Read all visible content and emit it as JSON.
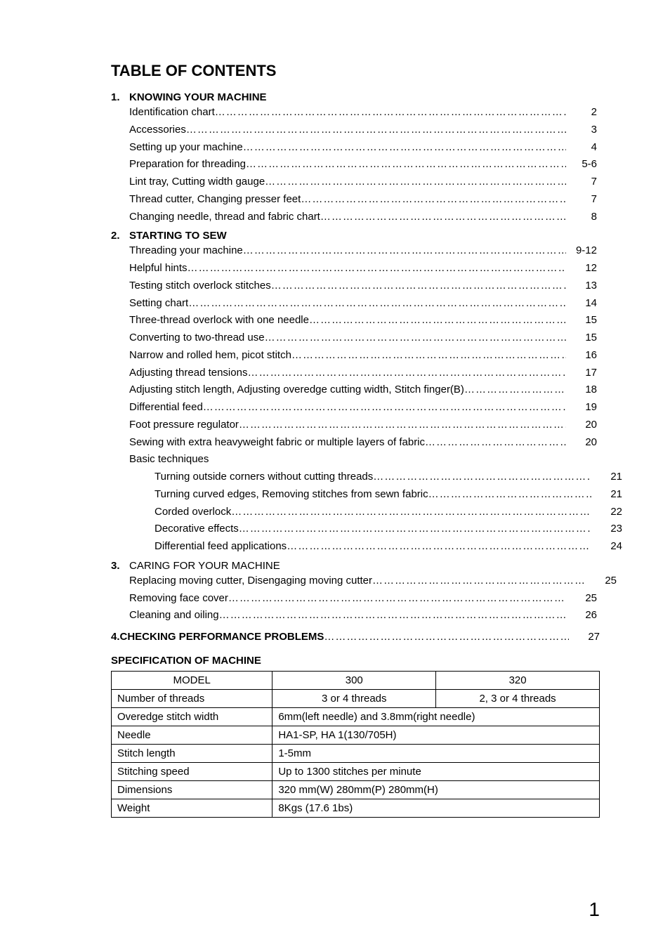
{
  "title": "TABLE OF CONTENTS",
  "sections": [
    {
      "num": "1.",
      "heading": "KNOWING YOUR MACHINE",
      "items": [
        {
          "label": "Identification chart",
          "page": "2"
        },
        {
          "label": "Accessories",
          "page": "3"
        },
        {
          "label": "Setting up your machine",
          "page": "4"
        },
        {
          "label": "Preparation for threading",
          "page": "5-6"
        },
        {
          "label": "Lint tray, Cutting width gauge",
          "page": "7"
        },
        {
          "label": "Thread cutter, Changing presser feet",
          "page": "7"
        },
        {
          "label": "Changing needle, thread and fabric chart",
          "page": "8"
        }
      ]
    },
    {
      "num": "2.",
      "heading": "STARTING TO SEW",
      "items": [
        {
          "label": "Threading your machine",
          "page": "9-12"
        },
        {
          "label": "Helpful hints",
          "page": "12"
        },
        {
          "label": "Testing stitch overlock stitches",
          "page": "13"
        },
        {
          "label": "Setting chart",
          "page": "14"
        },
        {
          "label": "Three-thread overlock with one needle",
          "page": "15"
        },
        {
          "label": "Converting to two-thread use",
          "page": "15"
        },
        {
          "label": "Narrow and rolled hem, picot stitch",
          "page": "16"
        },
        {
          "label": "Adjusting thread tensions",
          "page": "17"
        },
        {
          "label": "Adjusting stitch length, Adjusting overedge cutting width, Stitch finger(B)",
          "page": "18"
        },
        {
          "label": "Differential feed",
          "page": "19"
        },
        {
          "label": "Foot pressure regulator",
          "page": "20"
        },
        {
          "label": "Sewing with extra heavyweight fabric or multiple layers of fabric",
          "page": "20"
        },
        {
          "label": "Basic techniques",
          "page": "",
          "plain": true
        },
        {
          "label": "Turning outside corners without cutting threads",
          "page": "21",
          "indent": 1
        },
        {
          "label": "Turning curved edges, Removing stitches from sewn fabric",
          "page": "21",
          "indent": 1
        },
        {
          "label": "Corded overlock",
          "page": "22",
          "indent": 1
        },
        {
          "label": "Decorative effects",
          "page": "23",
          "indent": 1
        },
        {
          "label": "Differential feed applications",
          "page": "24",
          "indent": 1
        }
      ]
    },
    {
      "num": "3.",
      "heading": "CARING FOR YOUR MACHINE",
      "heading_bold": false,
      "items": [
        {
          "label": "Replacing moving cutter, Disengaging moving cutter",
          "page": "25",
          "shift_right": true
        },
        {
          "label": "Removing face cover",
          "page": "25"
        },
        {
          "label": "Cleaning and oiling",
          "page": "26"
        }
      ]
    },
    {
      "num": "4.",
      "heading": "CHECKING PERFORMANCE PROBLEMS",
      "heading_is_line": true,
      "heading_page": "27"
    }
  ],
  "spec_heading": "SPECIFICATION OF MACHINE",
  "spec_table": {
    "rows": [
      [
        {
          "t": "MODEL",
          "cls": "hdr"
        },
        {
          "t": "300",
          "cls": "hdr"
        },
        {
          "t": "320",
          "cls": "hdr"
        }
      ],
      [
        {
          "t": "Number of threads"
        },
        {
          "t": "3 or 4 threads",
          "cls": "hdr"
        },
        {
          "t": "2, 3 or 4 threads",
          "cls": "hdr"
        }
      ],
      [
        {
          "t": "Overedge stitch width"
        },
        {
          "t": "6mm(left needle) and 3.8mm(right needle)",
          "colspan": 2
        }
      ],
      [
        {
          "t": "Needle"
        },
        {
          "t": "HA1-SP, HA    1(130/705H)",
          "colspan": 2
        }
      ],
      [
        {
          "t": "Stitch length"
        },
        {
          "t": "1-5mm",
          "colspan": 2
        }
      ],
      [
        {
          "t": "Stitching speed"
        },
        {
          "t": "Up to 1300 stitches per minute",
          "colspan": 2
        }
      ],
      [
        {
          "t": "Dimensions"
        },
        {
          "t": "320 mm(W)    280mm(P)   280mm(H)",
          "colspan": 2
        }
      ],
      [
        {
          "t": "Weight"
        },
        {
          "t": "8Kgs (17.6 1bs)",
          "colspan": 2
        }
      ]
    ],
    "col_widths": [
      "33%",
      "33.5%",
      "33.5%"
    ]
  },
  "page_number": "1",
  "dots": "……………………………………………………………………………………………………………………………………"
}
